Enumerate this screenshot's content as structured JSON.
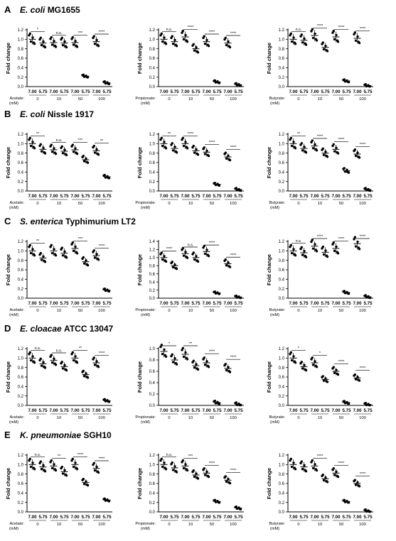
{
  "axis": {
    "ylabel": "Fold change",
    "xticks": [
      "7.00",
      "5.75"
    ],
    "concentrations": [
      "0",
      "10",
      "50",
      "100"
    ],
    "acid_labels": [
      "Acetate:",
      "Propionate:",
      "Butyrate:"
    ],
    "unit": "(mM)",
    "colors": {
      "points": "#000000",
      "axis": "#000000",
      "stats": "#000000"
    }
  },
  "chart_data": [
    {
      "panel": "A",
      "title_species": "E. coli",
      "title_strain": "MG1655",
      "type": "scatter",
      "charts": [
        {
          "acid": "Acetate:",
          "ylim": [
            0,
            1.2
          ],
          "yticks": [
            0.0,
            0.2,
            0.4,
            0.6,
            0.8,
            1.0,
            1.2
          ],
          "means": [
            1.0,
            0.92,
            0.93,
            0.92,
            0.93,
            0.22,
            0.95,
            0.08
          ],
          "sig": [
            "*",
            "n.s.",
            "***",
            "****"
          ]
        },
        {
          "acid": "Propionate:",
          "ylim": [
            0,
            1.2
          ],
          "yticks": [
            0.0,
            0.2,
            0.4,
            0.6,
            0.8,
            1.0,
            1.2
          ],
          "means": [
            1.0,
            0.95,
            1.05,
            0.8,
            0.95,
            0.1,
            0.92,
            0.04
          ],
          "sig": [
            "n.s.",
            "****",
            "****",
            "****"
          ]
        },
        {
          "acid": "Butyrate:",
          "ylim": [
            0,
            1.2
          ],
          "yticks": [
            0.0,
            0.2,
            0.4,
            0.6,
            0.8,
            1.0,
            1.2
          ],
          "means": [
            1.0,
            0.98,
            1.08,
            0.83,
            1.05,
            0.12,
            1.02,
            0.02
          ],
          "sig": [
            "n.s.",
            "****",
            "****",
            "****"
          ]
        }
      ]
    },
    {
      "panel": "B",
      "title_species": "E. coli",
      "title_strain": "Nissle 1917",
      "type": "scatter",
      "charts": [
        {
          "acid": "Acetate:",
          "ylim": [
            0,
            1.2
          ],
          "yticks": [
            0.0,
            0.2,
            0.4,
            0.6,
            0.8,
            1.0,
            1.2
          ],
          "means": [
            1.0,
            0.88,
            0.87,
            0.84,
            0.87,
            0.66,
            0.85,
            0.3
          ],
          "sig": [
            "**",
            "n.s.",
            "***",
            "**"
          ]
        },
        {
          "acid": "Propionate:",
          "ylim": [
            0,
            1.2
          ],
          "yticks": [
            0.0,
            0.2,
            0.4,
            0.6,
            0.8,
            1.0,
            1.2
          ],
          "means": [
            1.0,
            0.9,
            1.0,
            0.85,
            0.82,
            0.14,
            0.72,
            0.03
          ],
          "sig": [
            "**",
            "****",
            "****",
            "****"
          ]
        },
        {
          "acid": "Butyrate:",
          "ylim": [
            0,
            1.2
          ],
          "yticks": [
            0.0,
            0.2,
            0.4,
            0.6,
            0.8,
            1.0,
            1.2
          ],
          "means": [
            1.0,
            0.9,
            0.95,
            0.8,
            0.88,
            0.43,
            0.78,
            0.03
          ],
          "sig": [
            "**",
            "****",
            "****",
            "****"
          ]
        }
      ]
    },
    {
      "panel": "C",
      "title_species": "S. enterica",
      "title_strain": "Typhimurium LT2",
      "type": "scatter",
      "charts": [
        {
          "acid": "Acetate:",
          "ylim": [
            0,
            1.2
          ],
          "yticks": [
            0.0,
            0.2,
            0.4,
            0.6,
            0.8,
            1.0,
            1.2
          ],
          "means": [
            1.0,
            0.85,
            1.0,
            0.95,
            1.05,
            0.77,
            0.9,
            0.17
          ],
          "sig": [
            "**",
            "",
            "***",
            "****"
          ]
        },
        {
          "acid": "Propionate:",
          "ylim": [
            0,
            1.4
          ],
          "yticks": [
            0.0,
            0.2,
            0.4,
            0.6,
            0.8,
            1.0,
            1.2,
            1.4
          ],
          "means": [
            1.0,
            0.8,
            1.1,
            1.0,
            1.15,
            0.13,
            0.85,
            0.03
          ],
          "sig": [
            "****",
            "n.s.",
            "****",
            "****"
          ]
        },
        {
          "acid": "Butyrate:",
          "ylim": [
            0,
            1.2
          ],
          "yticks": [
            0.0,
            0.2,
            0.4,
            0.6,
            0.8,
            1.0,
            1.2
          ],
          "means": [
            1.0,
            0.96,
            1.1,
            0.97,
            1.05,
            0.12,
            1.15,
            0.03
          ],
          "sig": [
            "n.s.",
            "****",
            "****",
            "****"
          ]
        }
      ]
    },
    {
      "panel": "D",
      "title_species": "E. cloacae",
      "title_strain": "ATCC 13047",
      "type": "scatter",
      "charts": [
        {
          "acid": "Acetate:",
          "ylim": [
            0,
            1.2
          ],
          "yticks": [
            0.0,
            0.2,
            0.4,
            0.6,
            0.8,
            1.0,
            1.2
          ],
          "means": [
            1.0,
            0.88,
            0.95,
            0.82,
            1.0,
            0.65,
            0.9,
            0.1
          ],
          "sig": [
            "n.s.",
            "n.s.",
            "**",
            "****"
          ]
        },
        {
          "acid": "Propionate:",
          "ylim": [
            0,
            1.0
          ],
          "yticks": [
            0.0,
            0.2,
            0.4,
            0.6,
            0.8,
            1.0
          ],
          "means": [
            0.95,
            0.8,
            0.9,
            0.7,
            0.75,
            0.05,
            0.65,
            0.02
          ],
          "sig": [
            "*",
            "**",
            "****",
            "****"
          ]
        },
        {
          "acid": "Butyrate:",
          "ylim": [
            0,
            1.2
          ],
          "yticks": [
            0.0,
            0.2,
            0.4,
            0.6,
            0.8,
            1.0,
            1.2
          ],
          "means": [
            1.0,
            0.82,
            0.9,
            0.55,
            0.72,
            0.06,
            0.58,
            0.02
          ],
          "sig": [
            "*",
            "*",
            "****",
            "****"
          ]
        }
      ]
    },
    {
      "panel": "E",
      "title_species": "K. pneumoniae",
      "title_strain": "SGH10",
      "type": "scatter",
      "charts": [
        {
          "acid": "Acetate:",
          "ylim": [
            0,
            1.2
          ],
          "yticks": [
            0.0,
            0.2,
            0.4,
            0.6,
            0.8,
            1.0,
            1.2
          ],
          "means": [
            1.0,
            0.95,
            0.97,
            0.85,
            1.0,
            0.62,
            0.92,
            0.25
          ],
          "sig": [
            "n.s.",
            "**",
            "****",
            "****"
          ]
        },
        {
          "acid": "Propionate:",
          "ylim": [
            0,
            1.2
          ],
          "yticks": [
            0.0,
            0.2,
            0.4,
            0.6,
            0.8,
            1.0,
            1.2
          ],
          "means": [
            1.0,
            0.93,
            0.97,
            0.78,
            0.82,
            0.22,
            0.67,
            0.08
          ],
          "sig": [
            "n.s.",
            "***",
            "****",
            "****"
          ]
        },
        {
          "acid": "Butyrate:",
          "ylim": [
            0,
            1.2
          ],
          "yticks": [
            0.0,
            0.2,
            0.4,
            0.6,
            0.8,
            1.0,
            1.2
          ],
          "means": [
            1.0,
            0.95,
            0.97,
            0.7,
            0.82,
            0.22,
            0.6,
            0.02
          ],
          "sig": [
            "",
            "****",
            "****",
            "****"
          ]
        }
      ]
    }
  ]
}
